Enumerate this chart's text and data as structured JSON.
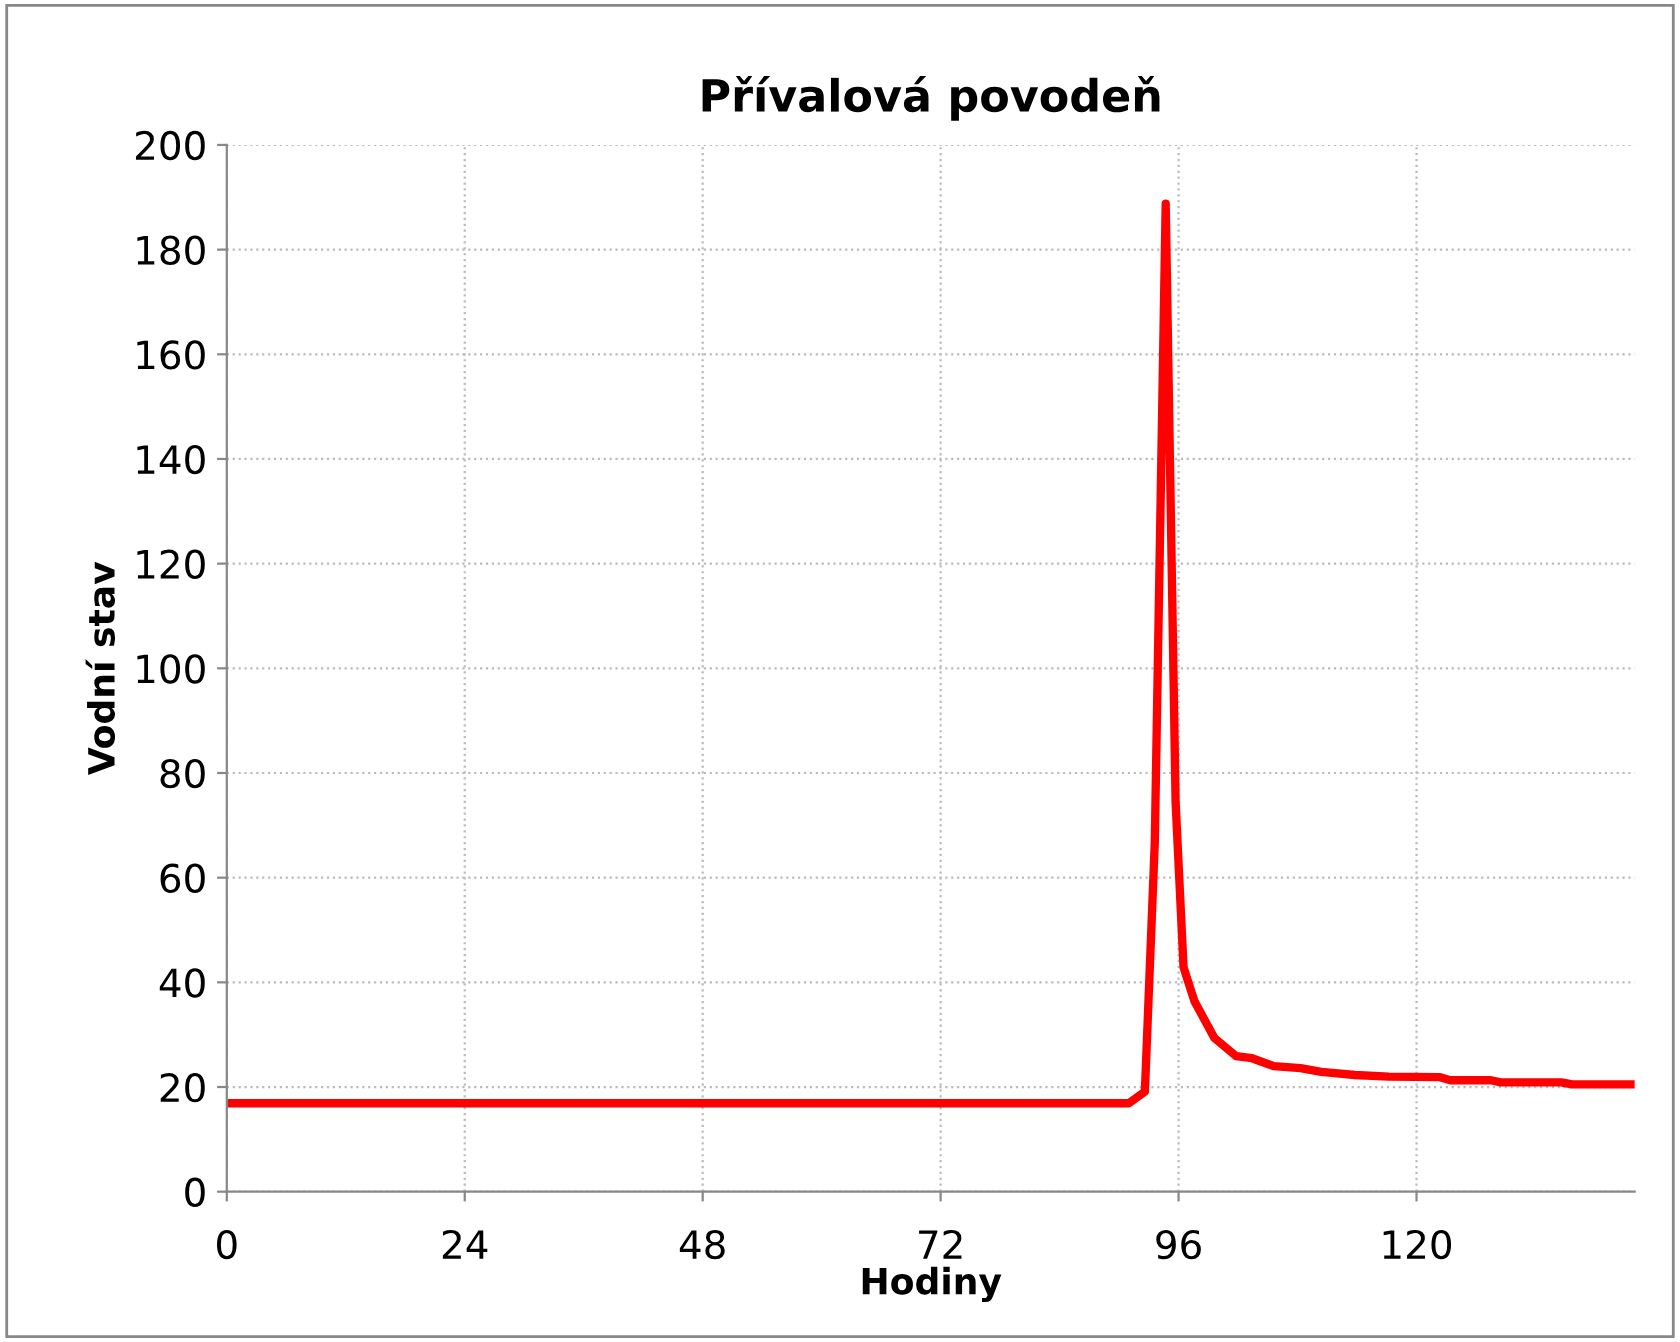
{
  "chart_data": {
    "type": "line",
    "title": "Přívalová povodeň",
    "xlabel": "Hodiny",
    "ylabel": "Vodní stav",
    "x": [
      0,
      91,
      92.6,
      93.6,
      94.7,
      95.7,
      96.5,
      97.6,
      99.6,
      101.8,
      103.4,
      105.6,
      108.3,
      110.4,
      113.8,
      117.2,
      122.3,
      123.4,
      127.5,
      128.5,
      134.6,
      135.7,
      142
    ],
    "series": [
      {
        "color": "#ff0000",
        "values": [
          16.9,
          16.9,
          19.1,
          66.7,
          188.8,
          74.4,
          42.9,
          36.4,
          29.4,
          25.9,
          25.5,
          24.0,
          23.6,
          22.9,
          22.3,
          22.0,
          21.9,
          21.3,
          21.3,
          20.9,
          20.9,
          20.5,
          20.5
        ]
      }
    ],
    "xlim": [
      0,
      142
    ],
    "xticks": [
      0,
      24,
      48,
      72,
      96,
      120
    ],
    "ylim": [
      0,
      200
    ],
    "yticks": [
      0,
      20,
      40,
      60,
      80,
      100,
      120,
      140,
      160,
      180,
      200
    ],
    "grid": true,
    "legend": false,
    "marker": "none",
    "line_style": "solid"
  }
}
